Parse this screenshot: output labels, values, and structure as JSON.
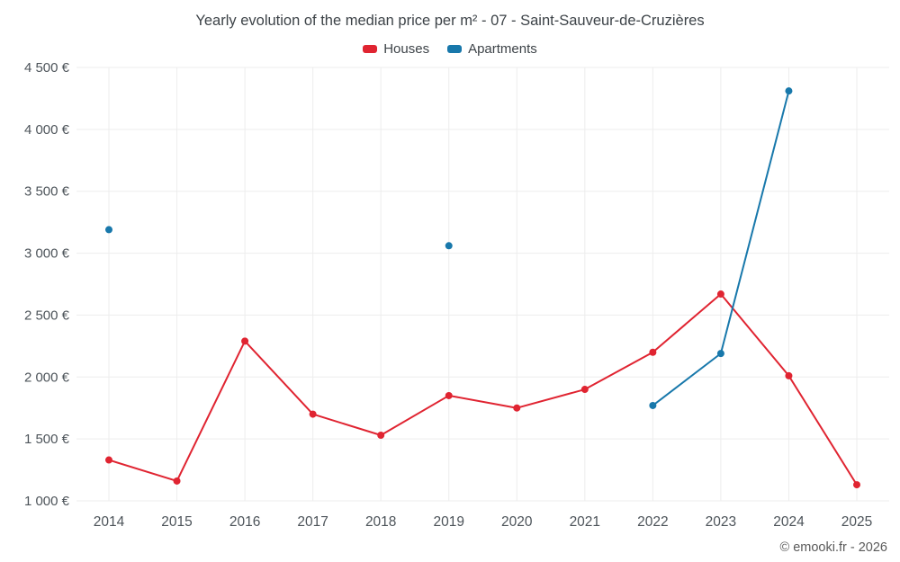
{
  "title": "Yearly evolution of the median price per m² - 07 - Saint-Sauveur-de-Cruzières",
  "legend": {
    "houses_label": "Houses",
    "apartments_label": "Apartments"
  },
  "footer": "© emooki.fr - 2026",
  "colors": {
    "houses": "#e02431",
    "apartments": "#1878ab",
    "grid": "#ededed",
    "axis_text": "#4d545a"
  },
  "chart_data": {
    "type": "line",
    "title": "Yearly evolution of the median price per m² - 07 - Saint-Sauveur-de-Cruzières",
    "x": [
      2014,
      2015,
      2016,
      2017,
      2018,
      2019,
      2020,
      2021,
      2022,
      2023,
      2024,
      2025
    ],
    "series": [
      {
        "name": "Houses",
        "color_key": "houses",
        "values": [
          1330,
          1160,
          2290,
          1700,
          1530,
          1850,
          1750,
          1900,
          2200,
          2670,
          2010,
          1130
        ]
      },
      {
        "name": "Apartments",
        "color_key": "apartments",
        "values": [
          3190,
          null,
          null,
          null,
          null,
          3060,
          null,
          null,
          1770,
          2190,
          4310,
          null
        ]
      }
    ],
    "ylim": [
      1000,
      4500
    ],
    "ytick_step": 500,
    "ytick_labels": [
      "1 000 €",
      "1 500 €",
      "2 000 €",
      "2 500 €",
      "3 000 €",
      "3 500 €",
      "4 000 €",
      "4 500 €"
    ],
    "xlabel": "",
    "ylabel": "",
    "grid": true,
    "legend_position": "top-center"
  }
}
